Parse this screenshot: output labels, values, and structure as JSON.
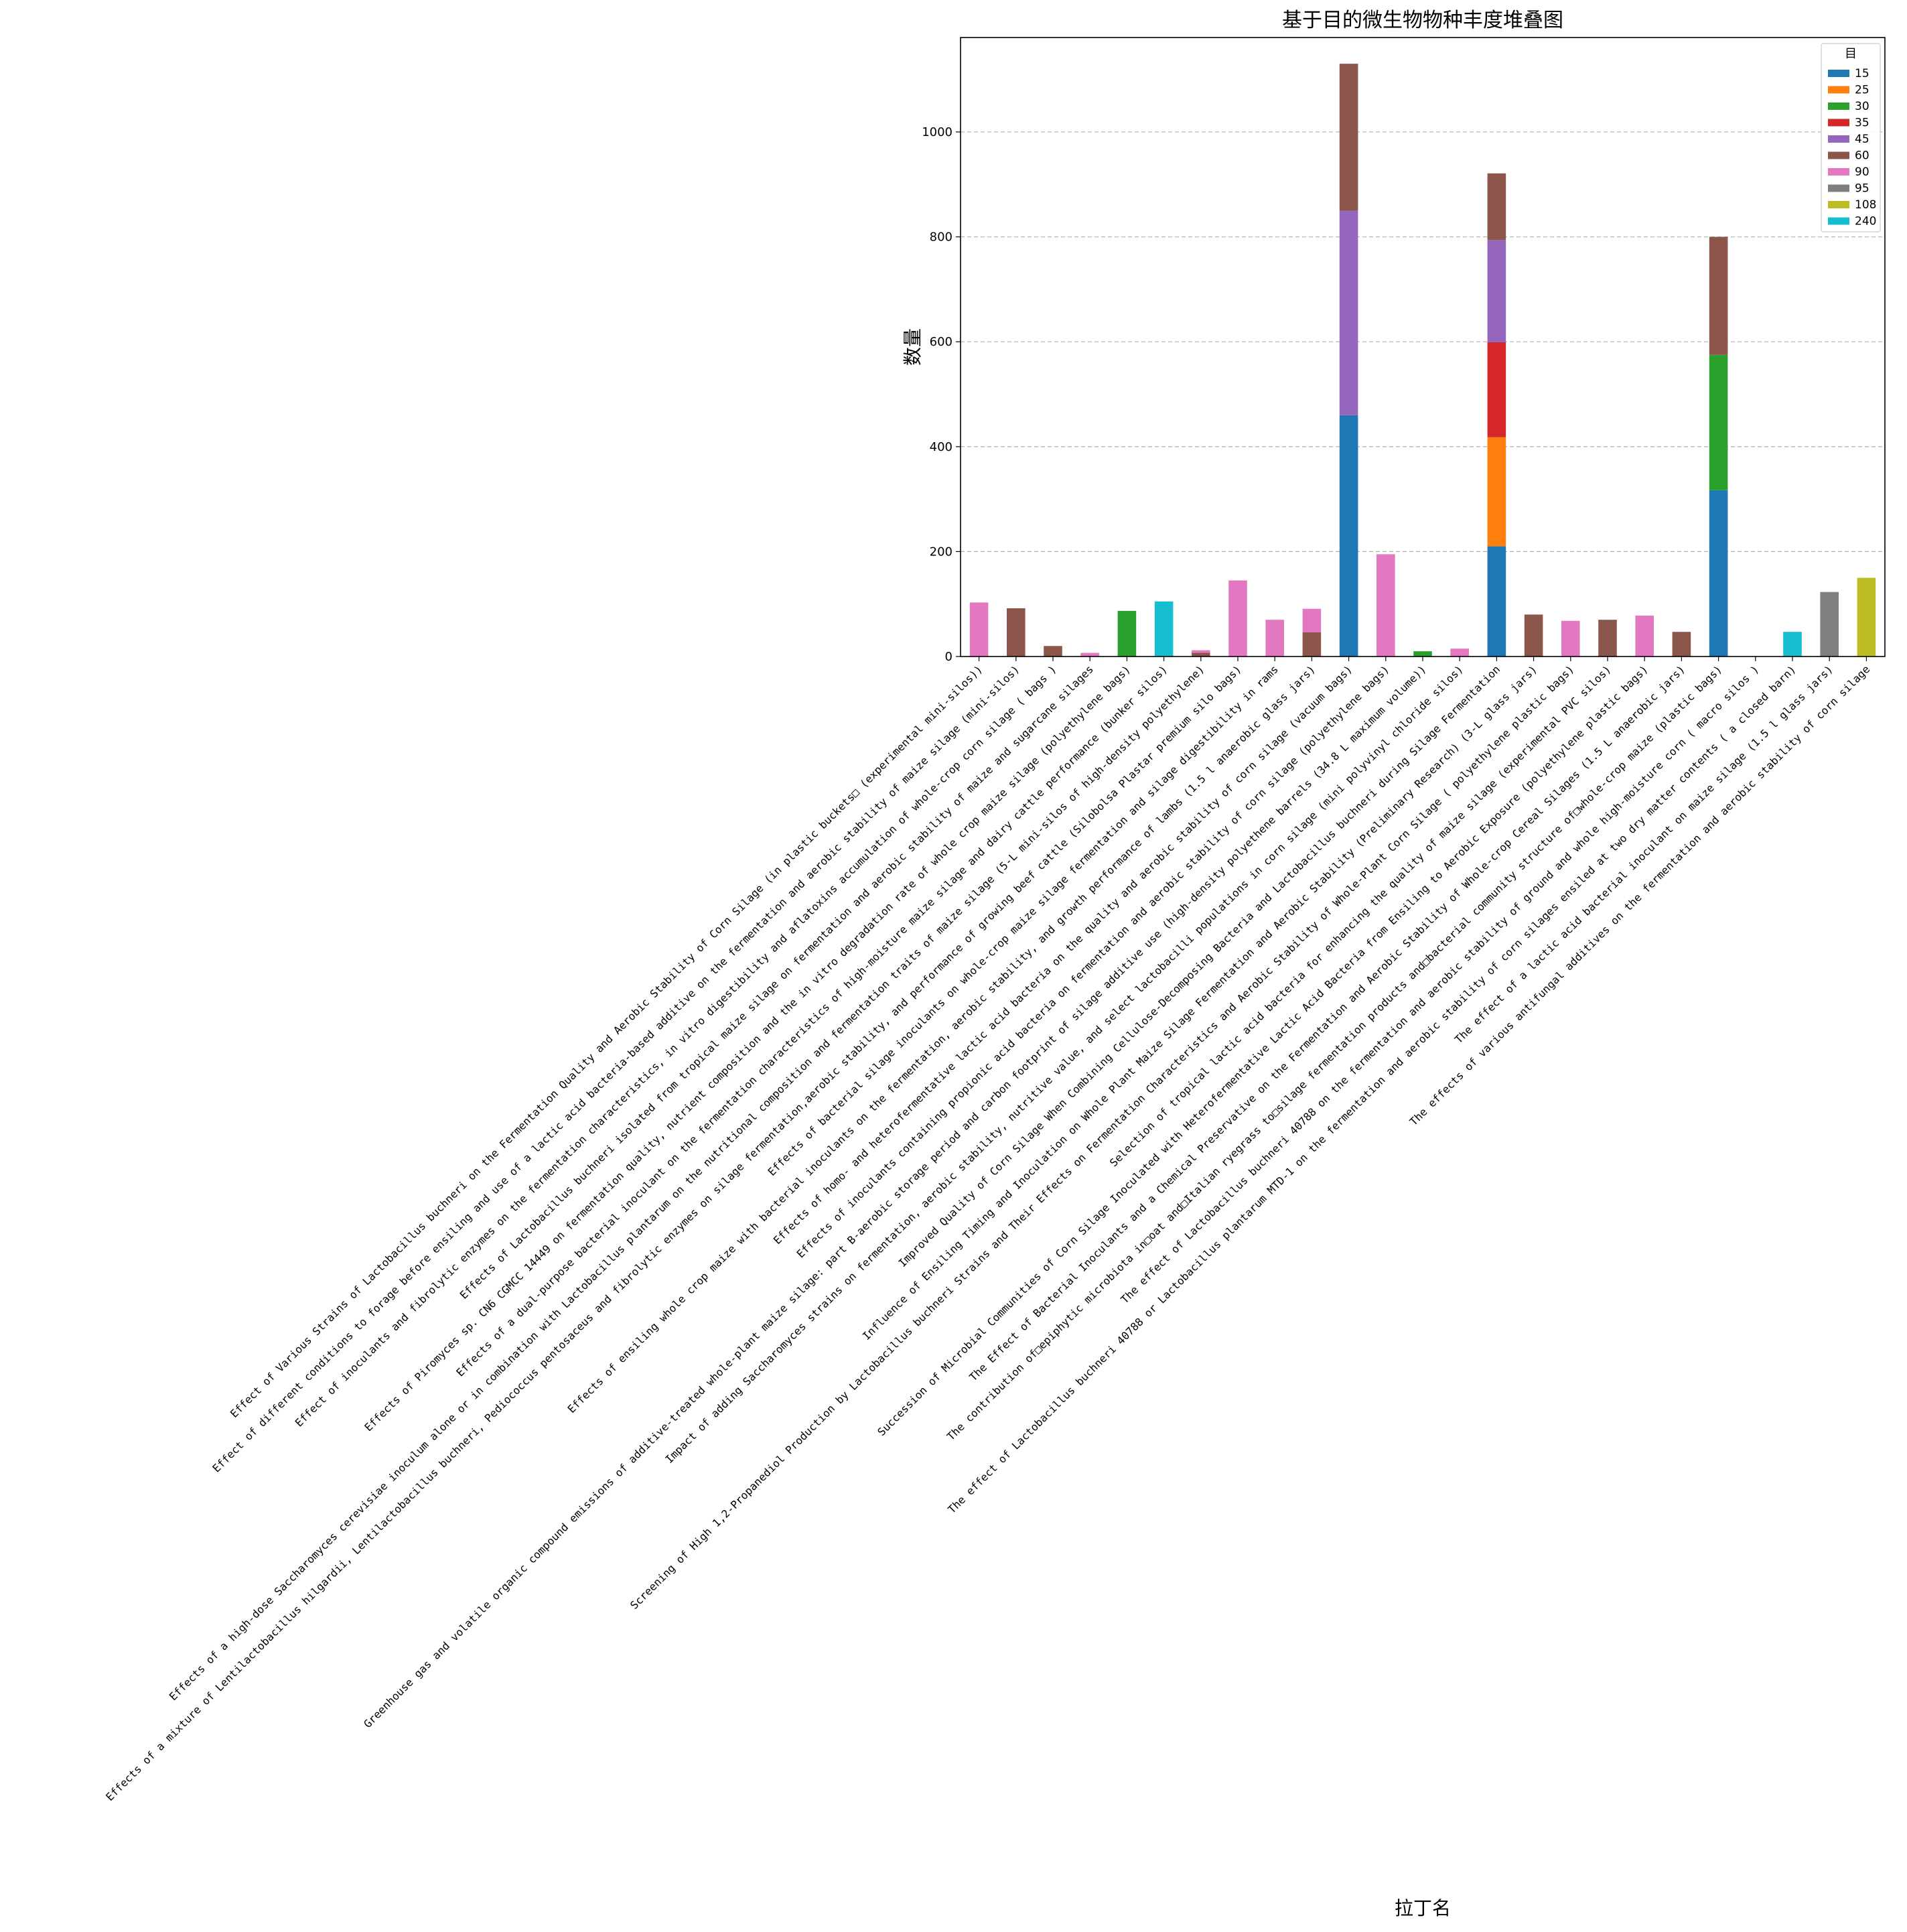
{
  "chart_data": {
    "type": "bar",
    "stacked": true,
    "title": "基于目的微生物物种丰度堆叠图",
    "xlabel": "拉丁名",
    "ylabel": "数量",
    "ylim": [
      0,
      1180
    ],
    "yticks": [
      0,
      200,
      400,
      600,
      800,
      1000
    ],
    "grid": "y-dashed",
    "legend": {
      "title": "目",
      "placement": "top-right"
    },
    "categories": [
      "Effect of Various Strains of Lactobacillus buchneri on the Fermentation Quality and Aerobic Stability of Corn Silage (in plastic buckets□ (experimental mini-silos))",
      "Effect of different conditions to forage before ensiling and use of a lactic acid bacteria-based additive on the fermentation and aerobic stability of maize silage (mini-silos)",
      "Effect of inoculants and fibrolytic enzymes on the fermentation characteristics, in vitro digestibility and aflatoxins accumulation of whole-crop corn silage ( bags )",
      "Effects of Lactobacillus buchneri isolated from tropical maize silage on fermentation and aerobic stability of maize and sugarcane silages",
      "Effects of Piromyces sp. CN6 CGMCC 14449 on fermentation quality, nutrient composition and the in vitro degradation rate of whole crop maize silage (polyethylene bags)",
      "Effects of a dual-purpose bacterial inoculant on the fermentation characteristics of high-moisture maize silage and dairy cattle performance (bunker silos)",
      "Effects of a high-dose Saccharomyces cerevisiae inoculum alone or in combination with Lactobacillus plantarum on the nutritional composition and fermentation traits of maize silage (5-L mini-silos of high-density polyethylene)",
      "Effects of a mixture of Lentilactobacillus hilgardii, Lentilactobacillus buchneri, Pediococcus pentosaceus and fibrolytic enzymes on silage fermentation,aerobic stability, and performance of growing beef cattle (Silobolsa Plastar premium silo bags)",
      "Effects of bacterial silage inoculants on whole-crop maize silage fermentation and silage digestibility in rams",
      "Effects of ensiling whole crop maize with bacterial inoculants on the fermentation, aerobic stability, and growth performance of lambs (1.5 l anaerobic glass jars)",
      "Effects of homo- and heterofermentative lactic acid bacteria on the quality and aerobic stability of corn silage (vacuum bags)",
      "Effects of inoculants containing propionic acid bacteria on fermentation and aerobic stability of corn silage (polyethylene bags)",
      "Greenhouse gas and volatile organic compound emissions of additive-treated whole-plant maize silage: part B-aerobic storage period and carbon footprint of silage additive use (high-density polyethene barrels (34.8 L maximum volume))",
      "Impact of adding Saccharomyces strains on fermentation, aerobic stability, nutritive value, and select lactobacilli populations in corn silage (mini polyvinyl chloride silos)",
      "Improved Quality of Corn Silage When Combining Cellulose-Decomposing Bacteria and Lactobacillus buchneri during Silage Fermentation",
      "Influence of Ensiling Timing and Inoculation on Whole Plant Maize Silage Fermentation and Aerobic Stability (Preliminary Research) (3-L glass jars)",
      "Screening of High 1,2-Propanediol Production by Lactobacillus buchneri Strains and Their Effects on Fermentation Characteristics and Aerobic Stability of Whole-Plant Corn Silage ( polyethylene plastic bags)",
      "Selection of tropical lactic acid bacteria for enhancing the quality of maize silage (experimental PVC silos)",
      "Succession of Microbial Communities of Corn Silage Inoculated with Heterofermentative Lactic Acid Bacteria from Ensiling to Aerobic Exposure (polyethylene plastic bags)",
      "The Effect of Bacterial Inoculants and a Chemical Preservative on the Fermentation and Aerobic Stability of Whole-crop Cereal Silages (1.5 L anaerobic jars)",
      "The contribution of□epiphytic microbiota in□oat and□Italian ryegrass to□silage fermentation products and□bacterial community structure of□whole-crop maize (plastic bags)",
      "The effect of Lactobacillus buchneri 40788 on the fermentation and aerobic stability of ground and whole high-moisture corn ( macro silos )",
      "The effect of Lactobacillus buchneri 40788 or Lactobacillus plantarum MTD-1 on the fermentation and aerobic stability of corn silages ensiled at two dry matter contents ( a closed barn)",
      "The effect of a lactic acid bacterial inoculant on maize silage (1.5 l glass jars)",
      "The effects of various antifungal additives on the fermentation and aerobic stability of corn silage"
    ],
    "series": [
      {
        "name": "15",
        "color": "#1f77b4",
        "values": [
          0,
          0,
          0,
          0,
          0,
          0,
          0,
          0,
          0,
          0,
          460,
          0,
          0,
          0,
          210,
          0,
          0,
          0,
          0,
          0,
          317,
          0,
          0,
          0,
          0
        ]
      },
      {
        "name": "25",
        "color": "#ff7f0e",
        "values": [
          0,
          0,
          0,
          0,
          0,
          0,
          0,
          0,
          0,
          0,
          0,
          0,
          0,
          0,
          208,
          0,
          0,
          0,
          0,
          0,
          0,
          0,
          0,
          0,
          0
        ]
      },
      {
        "name": "30",
        "color": "#2ca02c",
        "values": [
          0,
          0,
          0,
          0,
          87,
          0,
          0,
          0,
          0,
          0,
          0,
          0,
          10,
          0,
          0,
          0,
          0,
          0,
          0,
          0,
          258,
          0,
          0,
          0,
          0
        ]
      },
      {
        "name": "35",
        "color": "#d62728",
        "values": [
          0,
          0,
          0,
          0,
          0,
          0,
          0,
          0,
          0,
          0,
          0,
          0,
          0,
          0,
          181,
          0,
          0,
          0,
          0,
          0,
          0,
          0,
          0,
          0,
          0
        ]
      },
      {
        "name": "45",
        "color": "#9467bd",
        "values": [
          0,
          0,
          0,
          0,
          0,
          0,
          0,
          0,
          0,
          0,
          390,
          0,
          0,
          0,
          195,
          0,
          0,
          0,
          0,
          0,
          0,
          0,
          0,
          0,
          0
        ]
      },
      {
        "name": "60",
        "color": "#8c564b",
        "values": [
          0,
          92,
          20,
          0,
          0,
          0,
          7,
          0,
          0,
          46,
          280,
          0,
          0,
          0,
          127,
          80,
          0,
          70,
          0,
          47,
          225,
          0,
          0,
          0,
          0
        ]
      },
      {
        "name": "90",
        "color": "#e377c2",
        "values": [
          103,
          0,
          0,
          7,
          0,
          0,
          5,
          145,
          70,
          45,
          0,
          195,
          0,
          15,
          0,
          0,
          68,
          0,
          78,
          0,
          0,
          0,
          0,
          0,
          0
        ]
      },
      {
        "name": "95",
        "color": "#7f7f7f",
        "values": [
          0,
          0,
          0,
          0,
          0,
          0,
          0,
          0,
          0,
          0,
          0,
          0,
          0,
          0,
          0,
          0,
          0,
          0,
          0,
          0,
          0,
          0,
          0,
          123,
          0
        ]
      },
      {
        "name": "108",
        "color": "#bcbd22",
        "values": [
          0,
          0,
          0,
          0,
          0,
          0,
          0,
          0,
          0,
          0,
          0,
          0,
          0,
          0,
          0,
          0,
          0,
          0,
          0,
          0,
          0,
          0,
          0,
          0,
          150
        ]
      },
      {
        "name": "240",
        "color": "#17becf",
        "values": [
          0,
          0,
          0,
          0,
          0,
          105,
          0,
          0,
          0,
          0,
          0,
          0,
          0,
          0,
          0,
          0,
          0,
          0,
          0,
          0,
          0,
          0,
          47,
          0,
          0
        ]
      }
    ]
  }
}
